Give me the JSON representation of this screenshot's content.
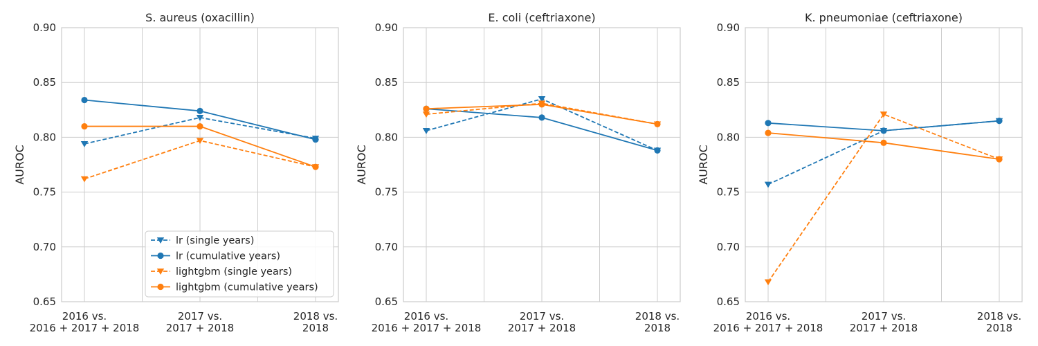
{
  "chart_data": [
    {
      "type": "line",
      "title": "S. aureus (oxacillin)",
      "xlabel": "",
      "ylabel": "AUROC",
      "ylim": [
        0.65,
        0.9
      ],
      "yticks": [
        "0.65",
        "0.70",
        "0.75",
        "0.80",
        "0.85",
        "0.90"
      ],
      "categories": [
        [
          "2016 vs.",
          "2016 + 2017 + 2018"
        ],
        [
          "2017 vs.",
          "2017 + 2018"
        ],
        [
          "2018 vs.",
          "2018"
        ]
      ],
      "grid": true,
      "legend": "lower-right",
      "series": [
        {
          "name": "lr (single years)",
          "values": [
            0.794,
            0.818,
            0.799
          ],
          "color": "#1f77b4",
          "dash": true,
          "marker": "triangle-down"
        },
        {
          "name": "lr (cumulative years)",
          "values": [
            0.834,
            0.824,
            0.798
          ],
          "color": "#1f77b4",
          "dash": false,
          "marker": "circle"
        },
        {
          "name": "lightgbm (single years)",
          "values": [
            0.762,
            0.797,
            0.773
          ],
          "color": "#ff7f0e",
          "dash": true,
          "marker": "triangle-down"
        },
        {
          "name": "lightgbm (cumulative years)",
          "values": [
            0.81,
            0.81,
            0.773
          ],
          "color": "#ff7f0e",
          "dash": false,
          "marker": "circle"
        }
      ]
    },
    {
      "type": "line",
      "title": "E. coli (ceftriaxone)",
      "xlabel": "",
      "ylabel": "AUROC",
      "ylim": [
        0.65,
        0.9
      ],
      "yticks": [
        "0.65",
        "0.70",
        "0.75",
        "0.80",
        "0.85",
        "0.90"
      ],
      "categories": [
        [
          "2016 vs.",
          "2016 + 2017 + 2018"
        ],
        [
          "2017 vs.",
          "2017 + 2018"
        ],
        [
          "2018 vs.",
          "2018"
        ]
      ],
      "grid": true,
      "series": [
        {
          "name": "lr (single years)",
          "values": [
            0.806,
            0.835,
            0.788
          ],
          "color": "#1f77b4",
          "dash": true,
          "marker": "triangle-down"
        },
        {
          "name": "lr (cumulative years)",
          "values": [
            0.826,
            0.818,
            0.788
          ],
          "color": "#1f77b4",
          "dash": false,
          "marker": "circle"
        },
        {
          "name": "lightgbm (single years)",
          "values": [
            0.821,
            0.831,
            0.812
          ],
          "color": "#ff7f0e",
          "dash": true,
          "marker": "triangle-down"
        },
        {
          "name": "lightgbm (cumulative years)",
          "values": [
            0.826,
            0.83,
            0.812
          ],
          "color": "#ff7f0e",
          "dash": false,
          "marker": "circle"
        }
      ]
    },
    {
      "type": "line",
      "title": "K. pneumoniae (ceftriaxone)",
      "xlabel": "",
      "ylabel": "AUROC",
      "ylim": [
        0.65,
        0.9
      ],
      "yticks": [
        "0.65",
        "0.70",
        "0.75",
        "0.80",
        "0.85",
        "0.90"
      ],
      "categories": [
        [
          "2016 vs.",
          "2016 + 2017 + 2018"
        ],
        [
          "2017 vs.",
          "2017 + 2018"
        ],
        [
          "2018 vs.",
          "2018"
        ]
      ],
      "grid": true,
      "series": [
        {
          "name": "lr (single years)",
          "values": [
            0.757,
            0.806,
            0.815
          ],
          "color": "#1f77b4",
          "dash": true,
          "marker": "triangle-down"
        },
        {
          "name": "lr (cumulative years)",
          "values": [
            0.813,
            0.806,
            0.815
          ],
          "color": "#1f77b4",
          "dash": false,
          "marker": "circle"
        },
        {
          "name": "lightgbm (single years)",
          "values": [
            0.668,
            0.821,
            0.78
          ],
          "color": "#ff7f0e",
          "dash": true,
          "marker": "triangle-down"
        },
        {
          "name": "lightgbm (cumulative years)",
          "values": [
            0.804,
            0.795,
            0.78
          ],
          "color": "#ff7f0e",
          "dash": false,
          "marker": "circle"
        }
      ]
    }
  ]
}
